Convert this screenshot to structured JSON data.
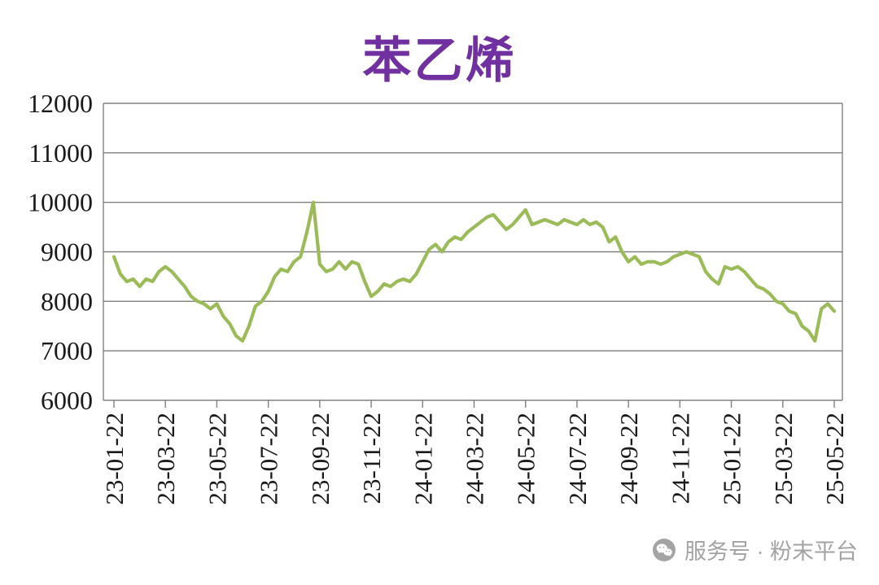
{
  "chart_data": {
    "type": "line",
    "title": "苯乙烯",
    "title_color": "#7030A0",
    "line_color": "#9BBB59",
    "grid_color": "#808080",
    "axis_color": "#808080",
    "label_color": "#1a1a1a",
    "grid": true,
    "legend_position": "none",
    "ylim": [
      6000,
      12000
    ],
    "y_tick_interval": 1000,
    "y_ticks": [
      6000,
      7000,
      8000,
      9000,
      10000,
      11000,
      12000
    ],
    "x_tick_labels": [
      "23-01-22",
      "23-03-22",
      "23-05-22",
      "23-07-22",
      "23-09-22",
      "23-11-22",
      "24-01-22",
      "24-03-22",
      "24-05-22",
      "24-07-22",
      "24-09-22",
      "24-11-22",
      "25-01-22",
      "25-03-22",
      "25-05-22"
    ],
    "series": [
      {
        "name": "苯乙烯",
        "values": [
          8900,
          8550,
          8400,
          8450,
          8300,
          8450,
          8400,
          8600,
          8700,
          8600,
          8450,
          8300,
          8100,
          8000,
          7950,
          7850,
          7950,
          7700,
          7550,
          7300,
          7200,
          7500,
          7900,
          8000,
          8200,
          8500,
          8650,
          8600,
          8800,
          8900,
          9400,
          10000,
          8750,
          8600,
          8650,
          8800,
          8650,
          8800,
          8750,
          8400,
          8100,
          8200,
          8350,
          8300,
          8400,
          8450,
          8400,
          8550,
          8800,
          9050,
          9150,
          9000,
          9200,
          9300,
          9250,
          9400,
          9500,
          9600,
          9700,
          9750,
          9600,
          9450,
          9550,
          9700,
          9850,
          9550,
          9600,
          9650,
          9600,
          9550,
          9650,
          9600,
          9550,
          9650,
          9550,
          9600,
          9500,
          9200,
          9300,
          9000,
          8800,
          8900,
          8750,
          8800,
          8800,
          8750,
          8800,
          8900,
          8950,
          9000,
          8950,
          8900,
          8600,
          8450,
          8350,
          8700,
          8650,
          8700,
          8600,
          8450,
          8300,
          8250,
          8150,
          8000,
          7950,
          7800,
          7750,
          7500,
          7400,
          7200,
          7850,
          7950,
          7800
        ]
      }
    ]
  },
  "watermark": {
    "text": "服务号 · 粉末平台",
    "icon": "wechat-icon",
    "color": "#a3a3a3"
  }
}
